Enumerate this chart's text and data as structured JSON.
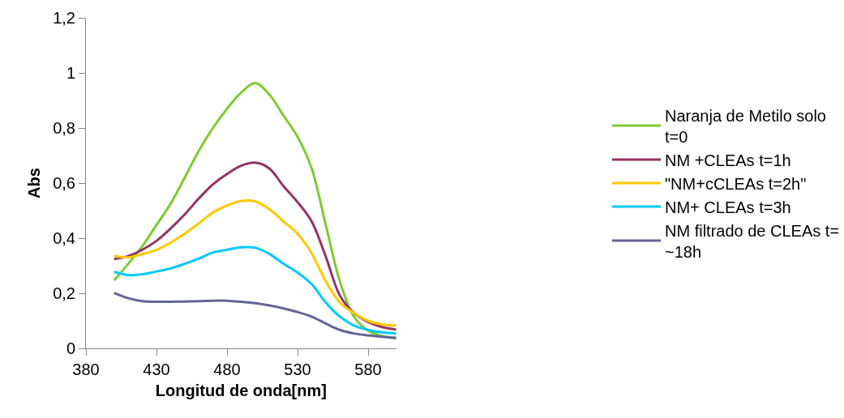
{
  "chart_data": {
    "type": "line",
    "xlabel": "Longitud de onda[nm]",
    "ylabel": "Abs",
    "x": [
      400,
      410,
      420,
      430,
      440,
      450,
      460,
      470,
      480,
      490,
      500,
      510,
      520,
      530,
      540,
      550,
      560,
      570,
      580,
      590,
      600
    ],
    "xlim": [
      380,
      600
    ],
    "xticks": [
      380,
      430,
      480,
      530,
      580
    ],
    "ylim": [
      0,
      1.2
    ],
    "yticks": [
      0,
      {
        "value": 0.2,
        "label": "0,2"
      },
      {
        "value": 0.4,
        "label": "0,4"
      },
      {
        "value": 0.6,
        "label": "0,6"
      },
      {
        "value": 0.8,
        "label": "0,8"
      },
      1,
      {
        "value": 1.2,
        "label": "1,2"
      }
    ],
    "legend": "right",
    "marker": "none",
    "line_style": "solid",
    "series": [
      {
        "name": "Naranja de Metilo solo t=0",
        "color": "#7ccc33",
        "values": [
          0.247,
          0.307,
          0.371,
          0.448,
          0.525,
          0.62,
          0.717,
          0.8,
          0.87,
          0.928,
          0.963,
          0.921,
          0.845,
          0.768,
          0.653,
          0.448,
          0.243,
          0.115,
          0.064,
          0.045,
          0.036
        ]
      },
      {
        "name": "NM +CLEAs t=1h",
        "color": "#953263",
        "values": [
          0.324,
          0.335,
          0.358,
          0.39,
          0.435,
          0.486,
          0.544,
          0.595,
          0.633,
          0.663,
          0.674,
          0.653,
          0.589,
          0.531,
          0.461,
          0.333,
          0.192,
          0.128,
          0.096,
          0.077,
          0.068
        ]
      },
      {
        "name": "\"NM+cCLEAs t=2h\"",
        "color": "#ffc800",
        "values": [
          0.336,
          0.33,
          0.342,
          0.358,
          0.384,
          0.416,
          0.454,
          0.493,
          0.518,
          0.535,
          0.534,
          0.505,
          0.461,
          0.416,
          0.345,
          0.243,
          0.166,
          0.128,
          0.1,
          0.087,
          0.082
        ]
      },
      {
        "name": "NM+ CLEAs t=3h",
        "color": "#00c8ff",
        "values": [
          0.278,
          0.266,
          0.269,
          0.279,
          0.29,
          0.307,
          0.326,
          0.348,
          0.358,
          0.367,
          0.365,
          0.343,
          0.307,
          0.275,
          0.233,
          0.166,
          0.115,
          0.083,
          0.067,
          0.058,
          0.054
        ]
      },
      {
        "name": "NM filtrado de CLEAs t= ~18h",
        "color": "#646496",
        "values": [
          0.201,
          0.182,
          0.171,
          0.169,
          0.169,
          0.17,
          0.171,
          0.173,
          0.173,
          0.169,
          0.164,
          0.156,
          0.145,
          0.132,
          0.115,
          0.09,
          0.067,
          0.054,
          0.047,
          0.042,
          0.038
        ]
      }
    ]
  }
}
